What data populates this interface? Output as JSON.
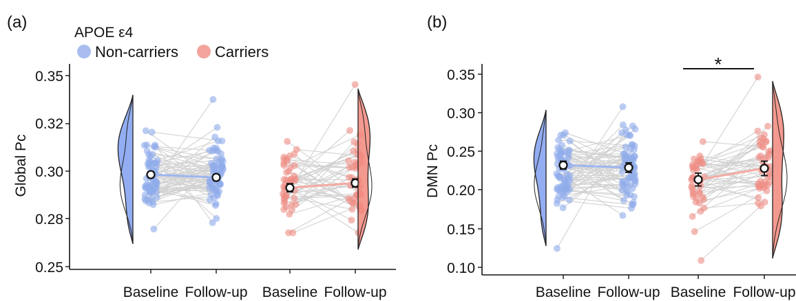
{
  "legend": {
    "title": "APOE ε4",
    "groups": [
      {
        "label": "Non-carriers",
        "color": "#a9bdf0"
      },
      {
        "label": "Carriers",
        "color": "#f4a49c"
      }
    ]
  },
  "colors": {
    "noncarrier_dot": "#8fabeb",
    "noncarrier_fill": "#7f9ff0",
    "carrier_dot": "#ee8d85",
    "carrier_fill": "#f2877b",
    "paired_line": "#d2d2d2",
    "noncarrier_mean_line": "#9db6ef",
    "carrier_mean_line": "#f4aaa3"
  },
  "chart_data": [
    {
      "panel_label": "(a)",
      "type": "scatter",
      "subtype": "raincloud-paired",
      "ylabel": "Global Pc",
      "ylim": [
        0.2475,
        0.3555
      ],
      "yticks": [
        "0.25",
        "0.28",
        "0.30",
        "0.32",
        "0.35"
      ],
      "categories": [
        "Baseline",
        "Follow-up",
        "Baseline",
        "Follow-up"
      ],
      "series": [
        {
          "name": "Non-carriers",
          "means": [
            0.298,
            0.2965
          ],
          "errors": [
            0.0015,
            0.0016
          ],
          "range": [
            0.269,
            0.338
          ],
          "n": 70,
          "seed": 11
        },
        {
          "name": "Carriers",
          "means": [
            0.291,
            0.2935
          ],
          "errors": [
            0.0022,
            0.0022
          ],
          "range": [
            0.267,
            0.346
          ],
          "n": 46,
          "seed": 23
        }
      ],
      "significance": null
    },
    {
      "panel_label": "(b)",
      "type": "scatter",
      "subtype": "raincloud-paired",
      "ylabel": "DMN Pc",
      "ylim": [
        0.095,
        0.355
      ],
      "yticks": [
        "0.10",
        "0.15",
        "0.20",
        "0.25",
        "0.30",
        "0.35"
      ],
      "categories": [
        "Baseline",
        "Follow-up",
        "Baseline",
        "Follow-up"
      ],
      "series": [
        {
          "name": "Non-carriers",
          "means": [
            0.232,
            0.229
          ],
          "errors": [
            0.005,
            0.006
          ],
          "range": [
            0.128,
            0.305
          ],
          "n": 70,
          "seed": 37
        },
        {
          "name": "Carriers",
          "means": [
            0.214,
            0.228
          ],
          "errors": [
            0.008,
            0.009
          ],
          "range": [
            0.113,
            0.342
          ],
          "n": 46,
          "seed": 53
        }
      ],
      "significance": {
        "label": "*",
        "between": [
          2,
          3
        ]
      }
    }
  ]
}
